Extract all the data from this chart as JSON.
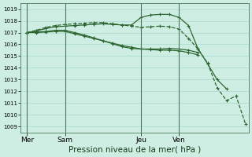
{
  "bg_color": "#ceeee4",
  "grid_color": "#a8d8cc",
  "line_color": "#2d6630",
  "xlabel": "Pression niveau de la mer( hPa )",
  "xlabel_fontsize": 7.5,
  "yticks": [
    1009,
    1010,
    1011,
    1012,
    1013,
    1014,
    1015,
    1016,
    1017,
    1018,
    1019
  ],
  "ylim": [
    1008.5,
    1019.5
  ],
  "day_labels": [
    "Mer",
    "Sam",
    "Jeu",
    "Ven"
  ],
  "day_positions": [
    0,
    24,
    72,
    96
  ],
  "xlim": [
    -4,
    140
  ],
  "series": [
    {
      "x": [
        0,
        6,
        12,
        18,
        24,
        30,
        36,
        42,
        48,
        54,
        60,
        66,
        72,
        78,
        84,
        90,
        96,
        102,
        108
      ],
      "y": [
        1017.0,
        1017.0,
        1017.05,
        1017.1,
        1017.1,
        1016.9,
        1016.7,
        1016.5,
        1016.3,
        1016.1,
        1015.9,
        1015.75,
        1015.6,
        1015.6,
        1015.6,
        1015.65,
        1015.6,
        1015.5,
        1015.3
      ],
      "style": "-",
      "linewidth": 0.9
    },
    {
      "x": [
        0,
        6,
        12,
        18,
        24,
        30,
        36,
        42,
        48,
        54,
        60,
        66,
        72,
        78,
        84,
        90,
        96,
        102,
        108
      ],
      "y": [
        1017.0,
        1017.05,
        1017.1,
        1017.2,
        1017.2,
        1017.0,
        1016.8,
        1016.55,
        1016.3,
        1016.05,
        1015.8,
        1015.65,
        1015.6,
        1015.55,
        1015.5,
        1015.5,
        1015.45,
        1015.3,
        1015.1
      ],
      "style": "-",
      "linewidth": 0.9
    },
    {
      "x": [
        0,
        6,
        12,
        18,
        24,
        30,
        36,
        42,
        48,
        54,
        60,
        66,
        72,
        78,
        84,
        90,
        96,
        102,
        108,
        114,
        120,
        126
      ],
      "y": [
        1017.0,
        1017.15,
        1017.35,
        1017.5,
        1017.55,
        1017.6,
        1017.65,
        1017.7,
        1017.75,
        1017.7,
        1017.65,
        1017.65,
        1018.3,
        1018.5,
        1018.55,
        1018.55,
        1018.3,
        1017.6,
        1015.6,
        1014.35,
        1013.0,
        1012.2
      ],
      "style": "-",
      "linewidth": 0.9
    },
    {
      "x": [
        0,
        6,
        12,
        18,
        24,
        30,
        36,
        42,
        48,
        54,
        60,
        66,
        72,
        78,
        84,
        90,
        96,
        102,
        108,
        114,
        120,
        126,
        132,
        138
      ],
      "y": [
        1017.0,
        1017.2,
        1017.45,
        1017.6,
        1017.7,
        1017.75,
        1017.8,
        1017.85,
        1017.85,
        1017.75,
        1017.65,
        1017.55,
        1017.45,
        1017.5,
        1017.55,
        1017.5,
        1017.3,
        1016.5,
        1015.6,
        1014.4,
        1012.3,
        1011.2,
        1011.6,
        1009.2
      ],
      "style": "--",
      "linewidth": 0.9
    }
  ]
}
